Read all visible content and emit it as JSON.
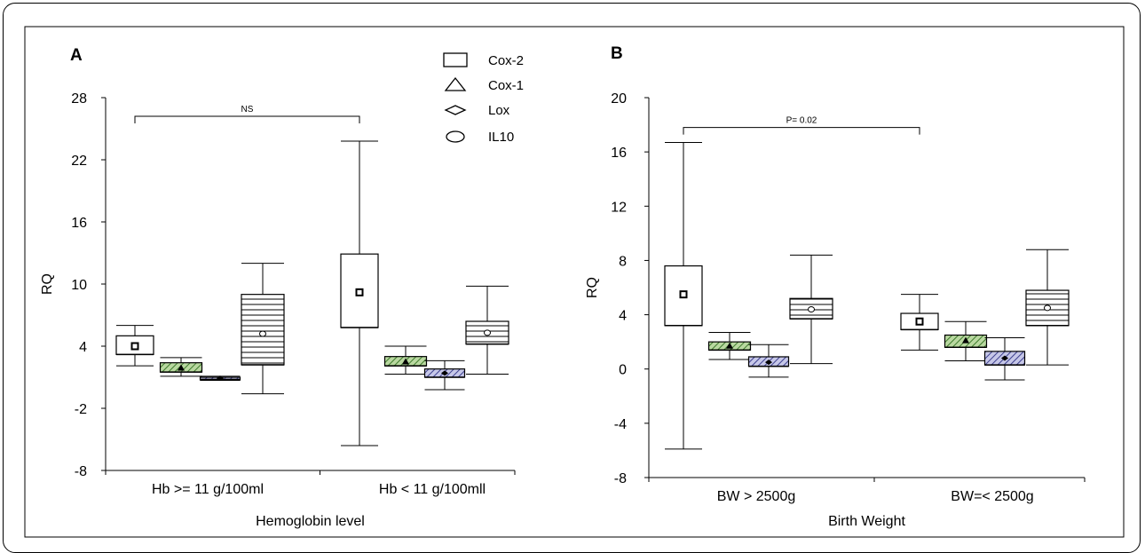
{
  "chart_data": [
    {
      "type": "box",
      "panel_label": "A",
      "xlabel": "Hemoglobin level",
      "ylabel": "RQ",
      "ylim": [
        -8,
        28
      ],
      "yticks": [
        -8,
        -2,
        4,
        10,
        16,
        22,
        28
      ],
      "categories": [
        "Hb >= 11 g/100ml",
        "Hb < 11 g/100mll"
      ],
      "legend": [
        {
          "name": "Cox-2",
          "marker": "rectangle"
        },
        {
          "name": "Cox-1",
          "marker": "triangle"
        },
        {
          "name": "Lox",
          "marker": "diamond"
        },
        {
          "name": "IL10",
          "marker": "ellipse"
        }
      ],
      "series": [
        {
          "name": "Cox-2",
          "fill": "blank",
          "boxes": [
            {
              "min": 2.1,
              "q1": 3.2,
              "median": 3.2,
              "q3": 5.0,
              "max": 6.0,
              "mean": 4.0
            },
            {
              "min": -5.6,
              "q1": 5.8,
              "median": 5.8,
              "q3": 12.9,
              "max": 23.8,
              "mean": 9.2
            }
          ]
        },
        {
          "name": "Cox-1",
          "fill": "green-hatch",
          "boxes": [
            {
              "min": 1.1,
              "q1": 1.5,
              "median": 1.5,
              "q3": 2.4,
              "max": 2.9,
              "mean": 1.9
            },
            {
              "min": 1.3,
              "q1": 2.1,
              "median": 2.1,
              "q3": 3.0,
              "max": 4.0,
              "mean": 2.5
            }
          ]
        },
        {
          "name": "Lox",
          "fill": "blue-hatch",
          "boxes": [
            {
              "min": 0.7,
              "q1": 0.8,
              "median": 0.8,
              "q3": 1.0,
              "max": 1.1,
              "mean": 0.9
            },
            {
              "min": -0.2,
              "q1": 1.0,
              "median": 1.0,
              "q3": 1.8,
              "max": 2.6,
              "mean": 1.4
            }
          ]
        },
        {
          "name": "IL10",
          "fill": "horizontal-lines",
          "boxes": [
            {
              "min": -0.6,
              "q1": 2.2,
              "median": 2.2,
              "q3": 9.0,
              "max": 12.0,
              "mean": 5.2
            },
            {
              "min": 1.3,
              "q1": 4.2,
              "median": 4.2,
              "q3": 6.4,
              "max": 9.8,
              "mean": 5.3
            }
          ]
        }
      ],
      "annotations": [
        {
          "text": "NS",
          "from_category": 0,
          "to_category": 1,
          "y": 26.2
        }
      ]
    },
    {
      "type": "box",
      "panel_label": "B",
      "xlabel": "Birth Weight",
      "ylabel": "RQ",
      "ylim": [
        -8,
        20
      ],
      "yticks": [
        -8,
        -4,
        0,
        4,
        8,
        12,
        16,
        20
      ],
      "categories": [
        "BW > 2500g",
        "BW=< 2500g"
      ],
      "series": [
        {
          "name": "Cox-2",
          "fill": "blank",
          "boxes": [
            {
              "min": -5.9,
              "q1": 3.2,
              "median": 3.2,
              "q3": 7.6,
              "max": 16.7,
              "mean": 5.5
            },
            {
              "min": 1.4,
              "q1": 2.9,
              "median": 2.9,
              "q3": 4.1,
              "max": 5.5,
              "mean": 3.5
            }
          ]
        },
        {
          "name": "Cox-1",
          "fill": "green-hatch",
          "boxes": [
            {
              "min": 0.7,
              "q1": 1.4,
              "median": 1.4,
              "q3": 2.0,
              "max": 2.7,
              "mean": 1.7
            },
            {
              "min": 0.6,
              "q1": 1.6,
              "median": 1.6,
              "q3": 2.5,
              "max": 3.5,
              "mean": 2.1
            }
          ]
        },
        {
          "name": "Lox",
          "fill": "blue-hatch",
          "boxes": [
            {
              "min": -0.6,
              "q1": 0.2,
              "median": 0.2,
              "q3": 0.9,
              "max": 1.8,
              "mean": 0.5
            },
            {
              "min": -0.8,
              "q1": 0.3,
              "median": 0.3,
              "q3": 1.3,
              "max": 2.3,
              "mean": 0.8
            }
          ]
        },
        {
          "name": "IL10",
          "fill": "horizontal-lines",
          "boxes": [
            {
              "min": 0.4,
              "q1": 3.7,
              "median": 3.7,
              "q3": 5.2,
              "max": 8.4,
              "mean": 4.4
            },
            {
              "min": 0.3,
              "q1": 3.2,
              "median": 3.2,
              "q3": 5.8,
              "max": 8.8,
              "mean": 4.5
            }
          ]
        }
      ],
      "annotations": [
        {
          "text": "P= 0.02",
          "from_category": 0,
          "to_category": 1,
          "y": 17.8
        }
      ]
    }
  ]
}
